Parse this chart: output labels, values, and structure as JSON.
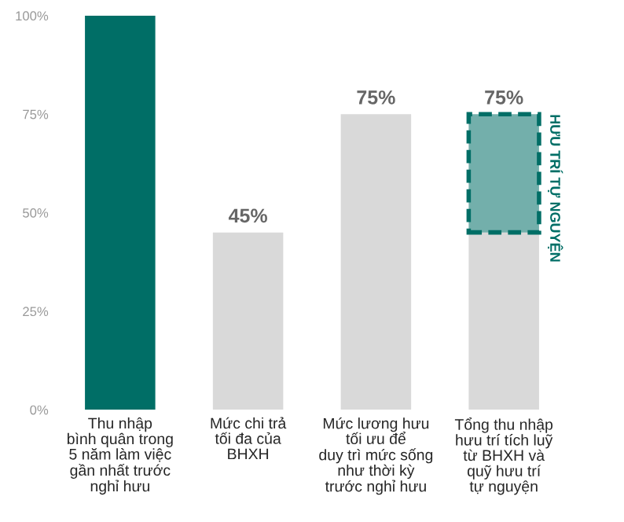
{
  "chart_data": {
    "type": "bar",
    "stacked": true,
    "categories": [
      "Thu nhập\nbình quân trong\n5 năm làm việc\ngần nhất trước\nnghỉ hưu",
      "Mức chi trả\ntối đa của\nBHXH",
      "Mức lương hưu\ntối ưu để\nduy trì mức sống\nnhư thời kỳ\ntrước nghỉ hưu",
      "Tổng thu nhập\nhưu trí tích luỹ\ntừ BHXH và\nquỹ hưu trí\ntự nguyện"
    ],
    "series": [
      {
        "colors": [
          "#006e66",
          "#d9d9d9",
          "#d9d9d9",
          "#d9d9d9"
        ],
        "values": [
          100,
          45,
          75,
          45
        ]
      },
      {
        "name": "HƯU TRÍ TỰ NGUYỆN",
        "color": "#006e66",
        "line_style": "dashed",
        "values": [
          null,
          null,
          null,
          30
        ]
      }
    ],
    "totals": [
      null,
      "45%",
      "75%",
      "75%"
    ],
    "ylim": [
      0,
      100
    ],
    "yticks": [
      {
        "value": 0,
        "label": "0%"
      },
      {
        "value": 25,
        "label": "25%"
      },
      {
        "value": 50,
        "label": "50%"
      },
      {
        "value": 75,
        "label": "75%"
      },
      {
        "value": 100,
        "label": "100%"
      }
    ],
    "grid": false,
    "legend": false
  }
}
